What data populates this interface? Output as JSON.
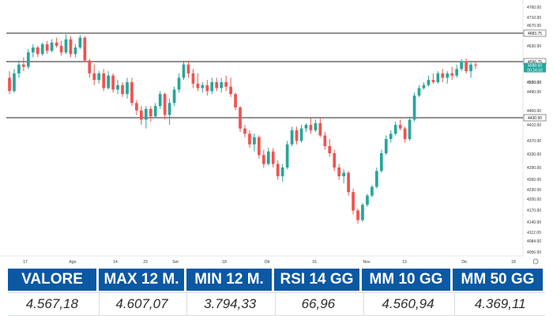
{
  "chart_data": {
    "type": "candlestick",
    "yticks": [
      "4760.00",
      "4710.00",
      "4670.00",
      "4630.00",
      "4590.00",
      "4550.00",
      "4530.00",
      "4490.00",
      "4450.00",
      "4410.00",
      "4370.00",
      "4330.00",
      "4290.00",
      "4260.00",
      "4230.00",
      "4200.00",
      "4170.00",
      "4140.00",
      "4112.00",
      "4084.00",
      "4056.00"
    ],
    "xticks": [
      "17",
      "Ago",
      "14",
      "23",
      "Set",
      "18",
      "Ott",
      "16",
      "Nov",
      "13",
      "Dic",
      "18"
    ],
    "levels": [
      {
        "value": "4683.75",
        "color": "#222222",
        "text_color": "#222222",
        "label_bg": "#ffffff"
      },
      {
        "value": "4596.75",
        "color": "#222222",
        "text_color": "#222222",
        "label_bg": "#ffffff"
      },
      {
        "value": "4430.50",
        "color": "#222222",
        "text_color": "#222222",
        "label_bg": "#ffffff"
      }
    ],
    "last_price": {
      "value": "4588.50",
      "subtext": "00:24:33",
      "color": "#26a69a"
    },
    "up_color": "#26a69a",
    "down_color": "#ef5350",
    "candles": [
      [
        4560,
        4575,
        4510,
        4520
      ],
      [
        4520,
        4580,
        4515,
        4570
      ],
      [
        4570,
        4600,
        4560,
        4590
      ],
      [
        4590,
        4610,
        4575,
        4585
      ],
      [
        4585,
        4635,
        4580,
        4625
      ],
      [
        4625,
        4650,
        4610,
        4640
      ],
      [
        4640,
        4645,
        4610,
        4620
      ],
      [
        4620,
        4655,
        4615,
        4650
      ],
      [
        4650,
        4660,
        4620,
        4630
      ],
      [
        4630,
        4665,
        4625,
        4655
      ],
      [
        4655,
        4670,
        4640,
        4645
      ],
      [
        4645,
        4660,
        4615,
        4625
      ],
      [
        4625,
        4680,
        4620,
        4665
      ],
      [
        4665,
        4675,
        4610,
        4620
      ],
      [
        4620,
        4650,
        4610,
        4640
      ],
      [
        4640,
        4678,
        4635,
        4670
      ],
      [
        4670,
        4675,
        4595,
        4600
      ],
      [
        4600,
        4605,
        4560,
        4570
      ],
      [
        4570,
        4590,
        4540,
        4555
      ],
      [
        4555,
        4575,
        4545,
        4570
      ],
      [
        4570,
        4580,
        4520,
        4530
      ],
      [
        4530,
        4575,
        4525,
        4565
      ],
      [
        4565,
        4570,
        4515,
        4525
      ],
      [
        4525,
        4555,
        4510,
        4540
      ],
      [
        4540,
        4550,
        4500,
        4510
      ],
      [
        4510,
        4560,
        4495,
        4550
      ],
      [
        4550,
        4560,
        4470,
        4480
      ],
      [
        4480,
        4490,
        4440,
        4455
      ],
      [
        4455,
        4470,
        4410,
        4425
      ],
      [
        4425,
        4470,
        4400,
        4460
      ],
      [
        4460,
        4470,
        4420,
        4435
      ],
      [
        4435,
        4480,
        4430,
        4470
      ],
      [
        4470,
        4520,
        4460,
        4510
      ],
      [
        4510,
        4515,
        4425,
        4440
      ],
      [
        4440,
        4495,
        4410,
        4480
      ],
      [
        4480,
        4535,
        4470,
        4525
      ],
      [
        4525,
        4570,
        4515,
        4560
      ],
      [
        4560,
        4600,
        4555,
        4590
      ],
      [
        4590,
        4600,
        4560,
        4570
      ],
      [
        4570,
        4580,
        4530,
        4545
      ],
      [
        4545,
        4570,
        4520,
        4530
      ],
      [
        4530,
        4550,
        4515,
        4540
      ],
      [
        4540,
        4555,
        4505,
        4520
      ],
      [
        4520,
        4560,
        4510,
        4550
      ],
      [
        4550,
        4560,
        4520,
        4530
      ],
      [
        4530,
        4560,
        4515,
        4550
      ],
      [
        4550,
        4565,
        4520,
        4535
      ],
      [
        4535,
        4560,
        4500,
        4510
      ],
      [
        4510,
        4515,
        4455,
        4465
      ],
      [
        4465,
        4470,
        4390,
        4400
      ],
      [
        4400,
        4410,
        4375,
        4385
      ],
      [
        4385,
        4395,
        4345,
        4355
      ],
      [
        4355,
        4385,
        4335,
        4375
      ],
      [
        4375,
        4380,
        4315,
        4325
      ],
      [
        4325,
        4340,
        4290,
        4300
      ],
      [
        4300,
        4345,
        4295,
        4335
      ],
      [
        4335,
        4345,
        4290,
        4300
      ],
      [
        4300,
        4310,
        4255,
        4265
      ],
      [
        4265,
        4300,
        4250,
        4290
      ],
      [
        4290,
        4365,
        4285,
        4355
      ],
      [
        4355,
        4405,
        4350,
        4395
      ],
      [
        4395,
        4405,
        4355,
        4365
      ],
      [
        4365,
        4410,
        4360,
        4400
      ],
      [
        4400,
        4415,
        4390,
        4410
      ],
      [
        4410,
        4430,
        4385,
        4395
      ],
      [
        4395,
        4425,
        4390,
        4415
      ],
      [
        4415,
        4430,
        4375,
        4380
      ],
      [
        4380,
        4390,
        4340,
        4350
      ],
      [
        4350,
        4370,
        4320,
        4330
      ],
      [
        4330,
        4340,
        4280,
        4290
      ],
      [
        4290,
        4300,
        4255,
        4265
      ],
      [
        4265,
        4285,
        4245,
        4275
      ],
      [
        4275,
        4280,
        4210,
        4220
      ],
      [
        4220,
        4230,
        4160,
        4170
      ],
      [
        4170,
        4175,
        4135,
        4145
      ],
      [
        4145,
        4190,
        4140,
        4185
      ],
      [
        4185,
        4215,
        4180,
        4210
      ],
      [
        4210,
        4240,
        4205,
        4235
      ],
      [
        4235,
        4290,
        4230,
        4280
      ],
      [
        4280,
        4340,
        4275,
        4330
      ],
      [
        4330,
        4380,
        4325,
        4370
      ],
      [
        4370,
        4395,
        4360,
        4385
      ],
      [
        4385,
        4420,
        4380,
        4410
      ],
      [
        4410,
        4425,
        4395,
        4400
      ],
      [
        4400,
        4405,
        4360,
        4370
      ],
      [
        4370,
        4435,
        4365,
        4425
      ],
      [
        4425,
        4515,
        4420,
        4505
      ],
      [
        4505,
        4540,
        4500,
        4530
      ],
      [
        4530,
        4550,
        4525,
        4540
      ],
      [
        4540,
        4565,
        4535,
        4555
      ],
      [
        4555,
        4570,
        4545,
        4550
      ],
      [
        4550,
        4575,
        4545,
        4570
      ],
      [
        4570,
        4580,
        4550,
        4560
      ],
      [
        4560,
        4575,
        4545,
        4570
      ],
      [
        4570,
        4585,
        4555,
        4565
      ],
      [
        4565,
        4590,
        4560,
        4580
      ],
      [
        4580,
        4605,
        4575,
        4598
      ],
      [
        4598,
        4607,
        4570,
        4575
      ],
      [
        4575,
        4595,
        4560,
        4590
      ],
      [
        4590,
        4597,
        4580,
        4588
      ]
    ]
  },
  "stats": {
    "headers": [
      "VALORE",
      "MAX 12 M.",
      "MIN 12 M.",
      "RSI 14 GG",
      "MM 10 GG",
      "MM 50 GG"
    ],
    "values": [
      "4.567,18",
      "4.607,07",
      "3.794,33",
      "66,96",
      "4.560,94",
      "4.369,11"
    ]
  }
}
